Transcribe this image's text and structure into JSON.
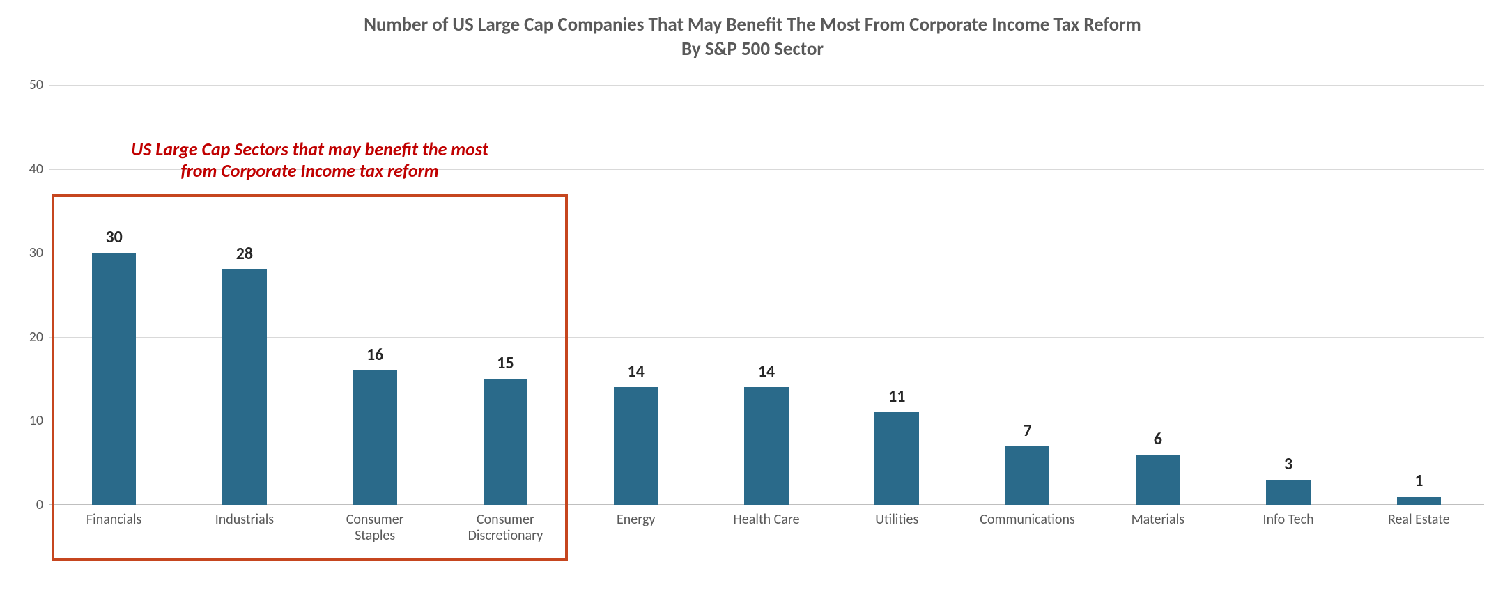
{
  "chart": {
    "type": "bar",
    "title_line1": "Number of US Large Cap Companies That May Benefit The Most From Corporate Income Tax Reform",
    "title_line2": "By S&P 500 Sector",
    "title_fontsize": 27,
    "title_color": "#595959",
    "background_color": "#ffffff",
    "grid_color": "#d9d9d9",
    "axis_color": "#bfbfbf",
    "y": {
      "min": 0,
      "max": 50,
      "tick_step": 10,
      "tick_fontsize": 20,
      "tick_color": "#595959"
    },
    "bar_color": "#2a6a8a",
    "bar_width_ratio": 0.34,
    "value_label_fontsize": 24,
    "value_label_color": "#262626",
    "x_label_fontsize": 20,
    "x_label_color": "#595959",
    "categories": [
      "Financials",
      "Industrials",
      "Consumer\nStaples",
      "Consumer\nDiscretionary",
      "Energy",
      "Health Care",
      "Utilities",
      "Communications",
      "Materials",
      "Info Tech",
      "Real Estate"
    ],
    "values": [
      30,
      28,
      16,
      15,
      14,
      14,
      11,
      7,
      6,
      3,
      1
    ],
    "highlight": {
      "start_index": 0,
      "end_index": 3,
      "border_color": "#c6461f",
      "border_width": 4,
      "annotation_line1": "US Large Cap Sectors that may benefit the most",
      "annotation_line2": "from Corporate Income tax reform",
      "annotation_color": "#c00000",
      "annotation_fontsize": 26
    }
  }
}
